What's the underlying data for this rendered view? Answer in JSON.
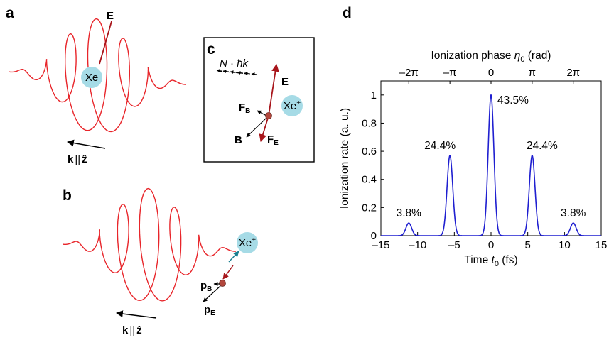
{
  "panels": {
    "a": {
      "label": "a",
      "atom": "Xe",
      "field_label": "E",
      "wave_vector_label": "k",
      "parallel_symbol": "||",
      "z_symbol": "ẑ"
    },
    "b": {
      "label": "b",
      "ion_label": "Xe",
      "ion_charge": "+",
      "pB_main": "p",
      "pB_sub": "B",
      "pE_main": "p",
      "pE_sub": "E",
      "wave_vector_label": "k",
      "parallel_symbol": "||",
      "z_symbol": "ẑ"
    },
    "c": {
      "label": "c",
      "photon_momentum_N": "N",
      "photon_momentum_dot": " · ",
      "photon_momentum_hk": "ħk",
      "field_label": "E",
      "ion_label": "Xe",
      "ion_charge": "+",
      "FB_main": "F",
      "FB_sub": "B",
      "B_label": "B",
      "FE_main": "F",
      "FE_sub": "E"
    },
    "d": {
      "label": "d"
    }
  },
  "colors": {
    "laser": "#e8252a",
    "field_arrow": "#a8161c",
    "atom_fill": "#a6dbe6",
    "electron": "#b2463c",
    "curve": "#1f1fd0",
    "teal_arrow": "#1d7f91",
    "axis": "#000000"
  },
  "chart_data": {
    "type": "line",
    "xlabel_prefix": "Time ",
    "xlabel_var": "t",
    "xlabel_sub": "0",
    "xlabel_suffix": " (fs)",
    "ylabel": "Ionization rate (a. u.)",
    "top_label_prefix": "Ionization phase ",
    "top_label_var": "η",
    "top_label_sub": "0",
    "top_label_suffix": " (rad)",
    "xlim": [
      -15,
      15
    ],
    "ylim": [
      0,
      1.1
    ],
    "x_ticks": [
      -15,
      -10,
      -5,
      0,
      5,
      10,
      15
    ],
    "x_tick_labels": [
      "–15",
      "–10",
      "–5",
      "0",
      "5",
      "10",
      "15"
    ],
    "y_ticks": [
      0,
      0.2,
      0.4,
      0.6,
      0.8,
      1
    ],
    "y_tick_labels": [
      "0",
      "0.2",
      "0.4",
      "0.6",
      "0.8",
      "1"
    ],
    "top_ticks": [
      -11.2,
      -5.6,
      0,
      5.6,
      11.2
    ],
    "top_tick_labels": [
      "–2π",
      "–π",
      "0",
      "π",
      "2π"
    ],
    "grid": false,
    "series": [
      {
        "peaks": [
          {
            "x": -11.2,
            "y": 0.09,
            "label": "3.8%"
          },
          {
            "x": -5.6,
            "y": 0.57,
            "label": "24.4%"
          },
          {
            "x": 0,
            "y": 1.0,
            "label": "43.5%"
          },
          {
            "x": 5.6,
            "y": 0.57,
            "label": "24.4%"
          },
          {
            "x": 11.2,
            "y": 0.09,
            "label": "3.8%"
          }
        ],
        "peak_width_fs": 0.55
      }
    ]
  }
}
